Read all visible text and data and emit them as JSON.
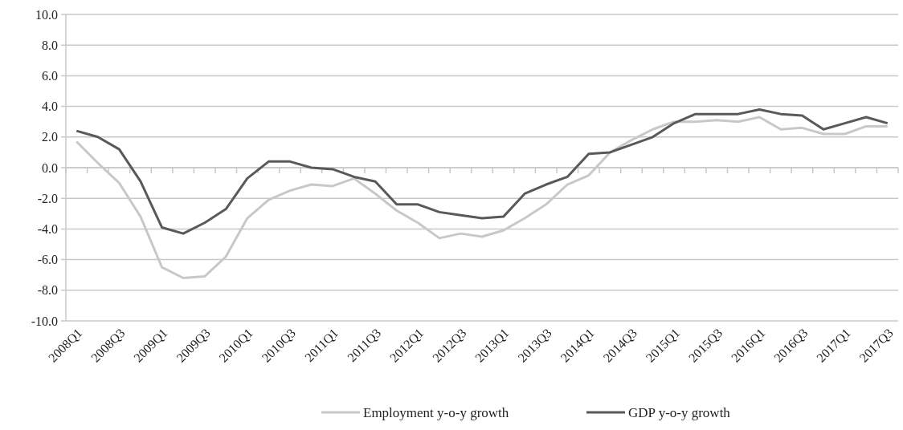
{
  "chart_data": {
    "type": "line",
    "categories": [
      "2008Q1",
      null,
      "2008Q3",
      null,
      "2009Q1",
      null,
      "2009Q3",
      null,
      "2010Q1",
      null,
      "2010Q3",
      null,
      "2011Q1",
      null,
      "2011Q3",
      null,
      "2012Q1",
      null,
      "2012Q3",
      null,
      "2013Q1",
      null,
      "2013Q3",
      null,
      "2014Q1",
      null,
      "2014Q3",
      null,
      "2015Q1",
      null,
      "2015Q3",
      null,
      "2016Q1",
      null,
      "2016Q3",
      null,
      "2017Q1",
      null,
      "2017Q3"
    ],
    "series": [
      {
        "name": "Employment y-o-y growth",
        "color": "#c8c8c8",
        "values": [
          1.7,
          0.3,
          -1.0,
          -3.2,
          -6.5,
          -7.2,
          -7.1,
          -5.8,
          -3.3,
          -2.1,
          -1.5,
          -1.1,
          -1.2,
          -0.7,
          -1.7,
          -2.8,
          -3.6,
          -4.6,
          -4.3,
          -4.5,
          -4.1,
          -3.3,
          -2.4,
          -1.1,
          -0.5,
          1.0,
          1.8,
          2.5,
          3.0,
          3.0,
          3.1,
          3.0,
          3.3,
          2.5,
          2.6,
          2.2,
          2.2,
          2.7,
          2.7
        ]
      },
      {
        "name": "GDP y-o-y growth",
        "color": "#595959",
        "values": [
          2.4,
          2.0,
          1.2,
          -0.9,
          -3.9,
          -4.3,
          -3.6,
          -2.7,
          -0.7,
          0.4,
          0.4,
          0.0,
          -0.1,
          -0.6,
          -0.9,
          -2.4,
          -2.4,
          -2.9,
          -3.1,
          -3.3,
          -3.2,
          -1.7,
          -1.1,
          -0.6,
          0.9,
          1.0,
          1.5,
          2.0,
          2.9,
          3.5,
          3.5,
          3.5,
          3.8,
          3.5,
          3.4,
          2.5,
          2.9,
          3.3,
          2.9
        ]
      }
    ],
    "ylim": [
      -10,
      10
    ],
    "yticks": [
      {
        "value": -10,
        "label": "-10.0"
      },
      {
        "value": -8,
        "label": "-8.0"
      },
      {
        "value": -6,
        "label": "-6.0"
      },
      {
        "value": -4,
        "label": "-4.0"
      },
      {
        "value": -2,
        "label": "-2.0"
      },
      {
        "value": 0,
        "label": "0.0"
      },
      {
        "value": 2,
        "label": "2.0"
      },
      {
        "value": 4,
        "label": "4.0"
      },
      {
        "value": 6,
        "label": "6.0"
      },
      {
        "value": 8,
        "label": "8.0"
      },
      {
        "value": 10,
        "label": "10.0"
      }
    ],
    "grid": "y",
    "legend": "bottom",
    "marker": "none",
    "line_style": "solid"
  }
}
